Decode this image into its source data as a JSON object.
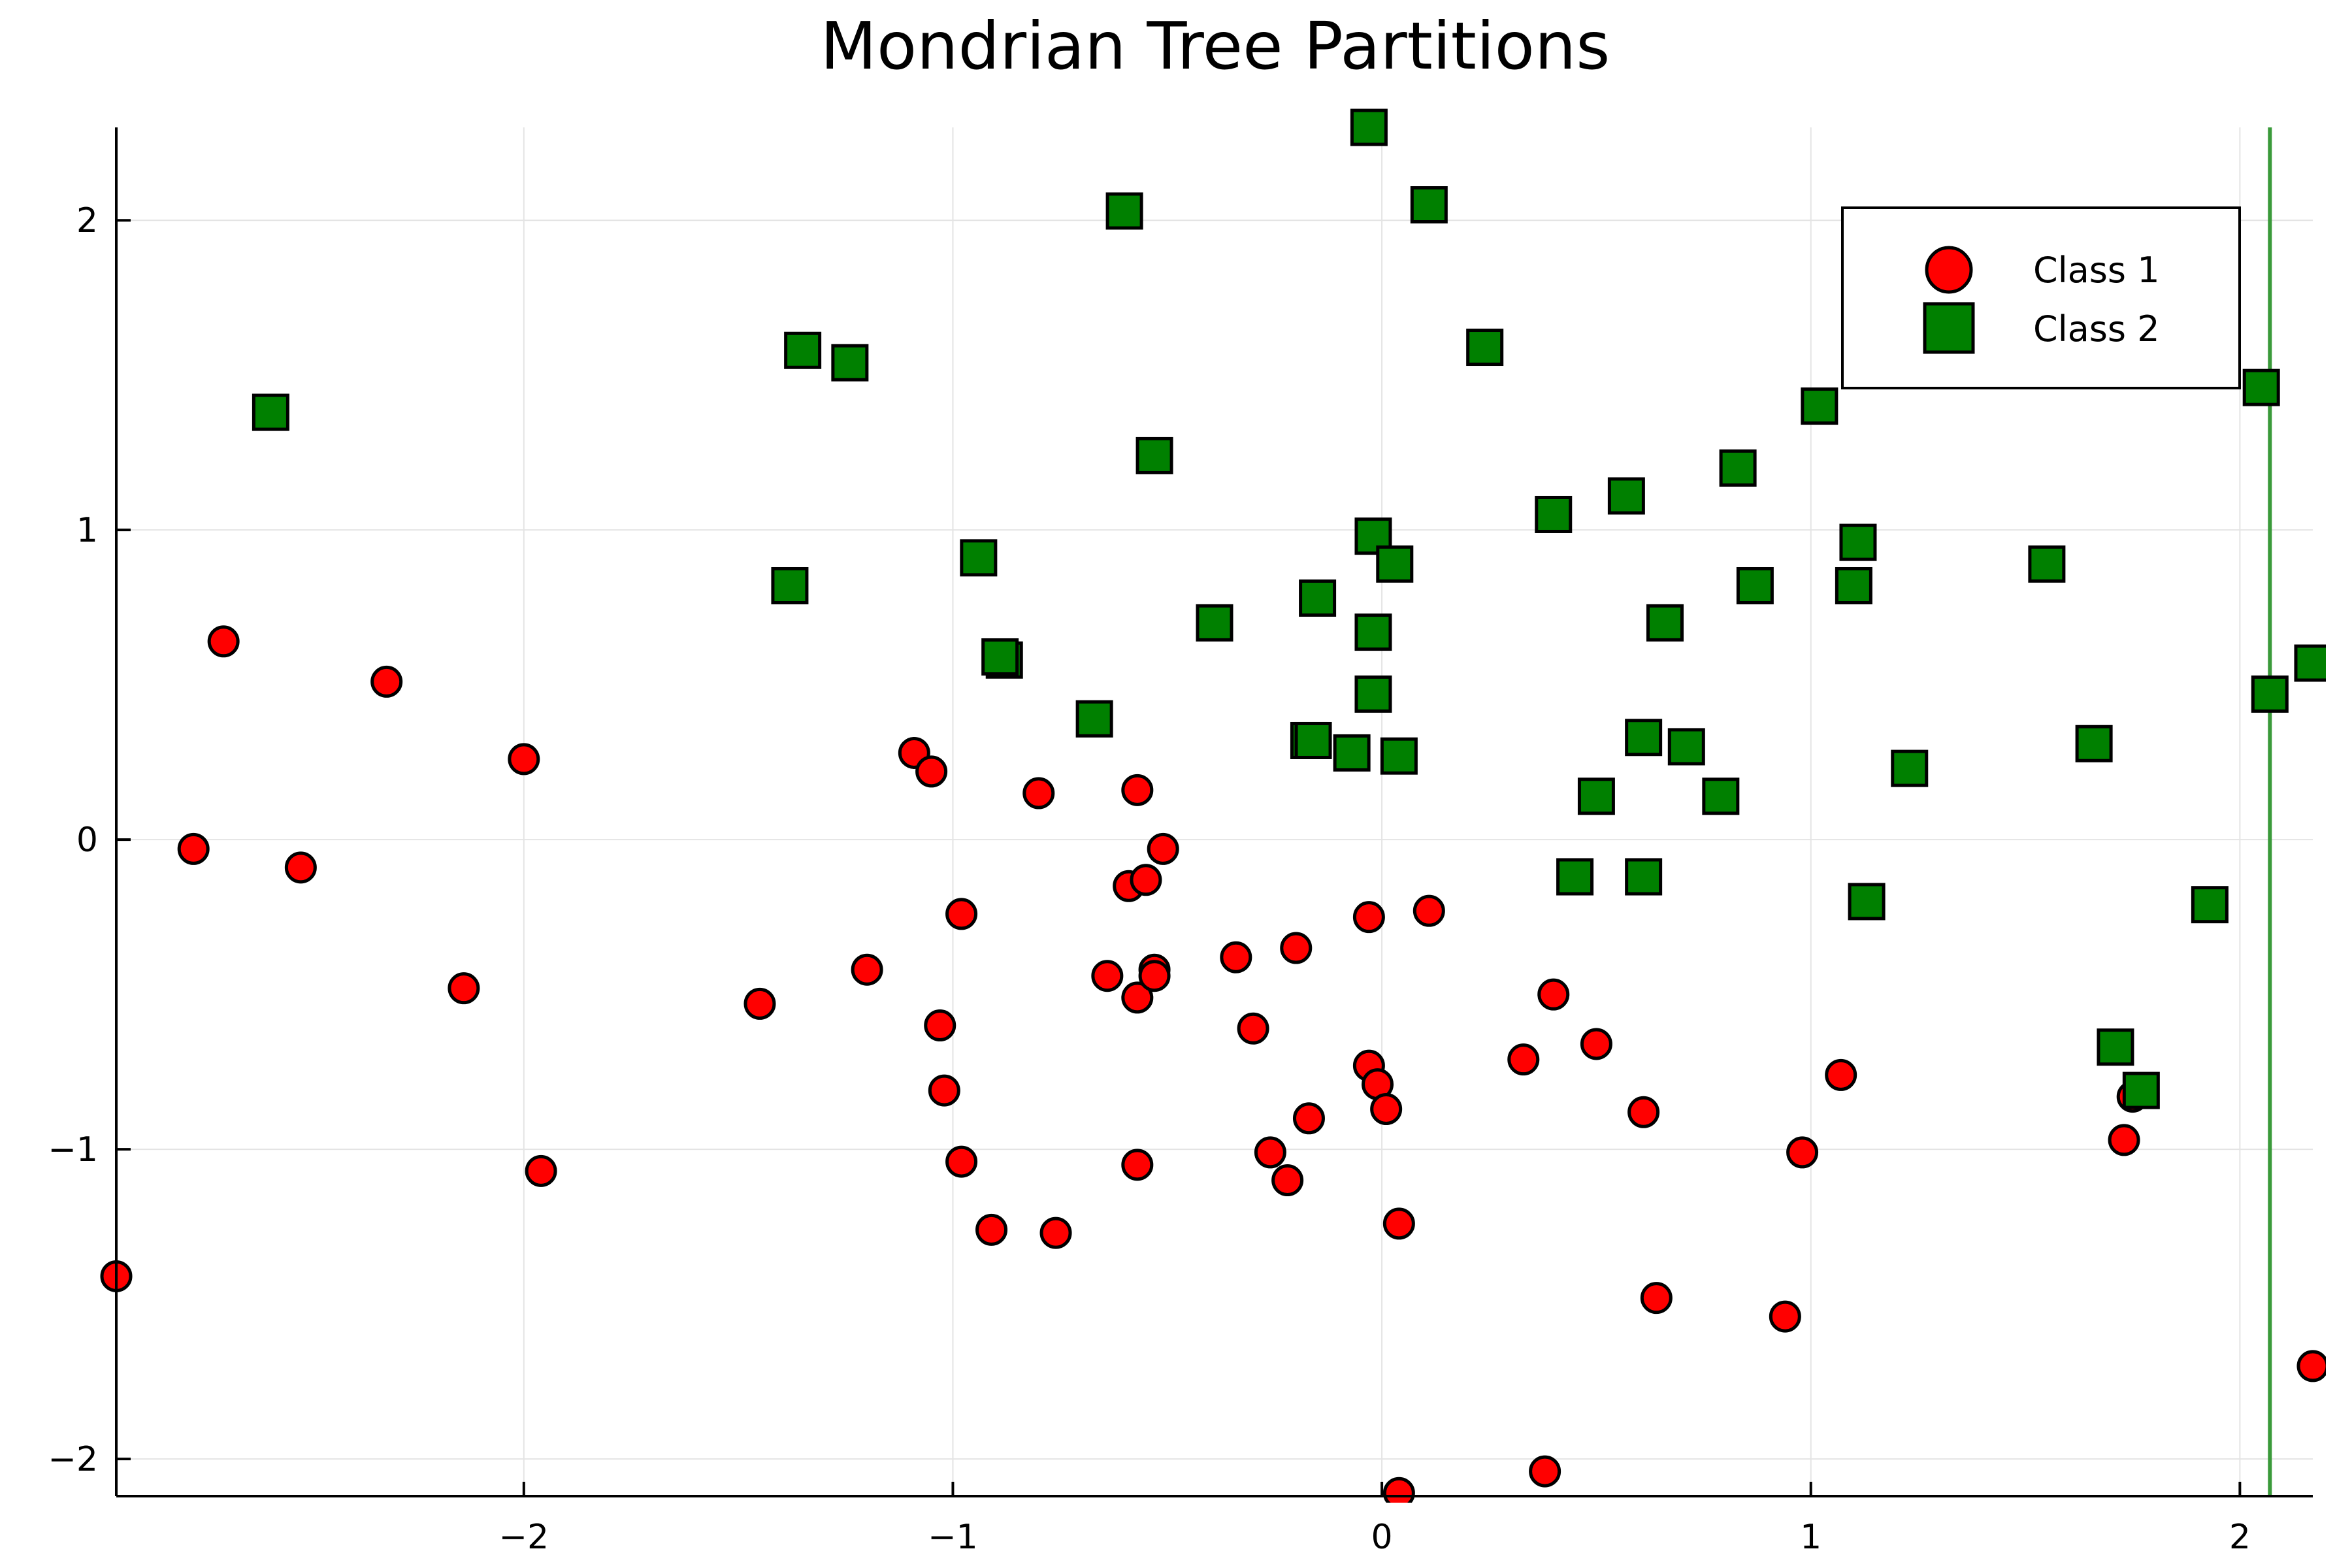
{
  "chart_data": {
    "type": "scatter",
    "title": "Mondrian Tree Partitions",
    "xlabel": "",
    "ylabel": "",
    "xlim": [
      -2.95,
      2.17
    ],
    "ylim": [
      -2.12,
      2.3
    ],
    "xticks": [
      -2,
      -1,
      0,
      1,
      2
    ],
    "yticks": [
      -2,
      -1,
      0,
      1,
      2
    ],
    "xtick_labels": [
      "−2",
      "−1",
      "0",
      "1",
      "2"
    ],
    "ytick_labels": [
      "−2",
      "−1",
      "0",
      "1",
      "2"
    ],
    "grid": true,
    "legend_position": "top-right",
    "partition_lines": [
      {
        "orientation": "vertical",
        "x": 2.07,
        "color": "#3a9a3a"
      }
    ],
    "series": [
      {
        "name": "Class 1",
        "marker": "circle",
        "color": "#ff0000",
        "points": [
          [
            -2.95,
            -1.41
          ],
          [
            -2.77,
            -0.03
          ],
          [
            -2.7,
            0.64
          ],
          [
            -2.52,
            -0.09
          ],
          [
            -2.32,
            0.51
          ],
          [
            -2.14,
            -0.48
          ],
          [
            -2.0,
            0.26
          ],
          [
            -1.96,
            -1.07
          ],
          [
            -1.45,
            -0.53
          ],
          [
            -1.2,
            -0.42
          ],
          [
            -1.09,
            0.28
          ],
          [
            -1.05,
            0.22
          ],
          [
            -1.03,
            -0.6
          ],
          [
            -1.02,
            -0.81
          ],
          [
            -0.98,
            -0.24
          ],
          [
            -0.98,
            -1.04
          ],
          [
            -0.91,
            -1.26
          ],
          [
            -0.8,
            0.15
          ],
          [
            -0.76,
            -1.27
          ],
          [
            -0.64,
            -0.44
          ],
          [
            -0.59,
            -0.15
          ],
          [
            -0.57,
            0.16
          ],
          [
            -0.57,
            -0.51
          ],
          [
            -0.57,
            -1.05
          ],
          [
            -0.55,
            -0.13
          ],
          [
            -0.53,
            -0.42
          ],
          [
            -0.53,
            -0.44
          ],
          [
            -0.51,
            -0.03
          ],
          [
            -0.34,
            -0.38
          ],
          [
            -0.3,
            -0.61
          ],
          [
            -0.26,
            -1.01
          ],
          [
            -0.22,
            -1.1
          ],
          [
            -0.2,
            -0.35
          ],
          [
            -0.17,
            -0.9
          ],
          [
            -0.03,
            -0.25
          ],
          [
            -0.03,
            -0.73
          ],
          [
            -0.01,
            -0.79
          ],
          [
            0.01,
            -0.87
          ],
          [
            0.04,
            -1.24
          ],
          [
            0.04,
            -2.11
          ],
          [
            0.11,
            -0.23
          ],
          [
            0.33,
            -0.71
          ],
          [
            0.38,
            -2.04
          ],
          [
            0.4,
            -0.5
          ],
          [
            0.5,
            -0.66
          ],
          [
            0.61,
            -0.88
          ],
          [
            0.64,
            -1.48
          ],
          [
            0.94,
            -1.54
          ],
          [
            0.98,
            -1.01
          ],
          [
            1.07,
            -0.76
          ],
          [
            1.73,
            -0.97
          ],
          [
            1.75,
            -0.83
          ],
          [
            2.17,
            -1.7
          ]
        ]
      },
      {
        "name": "Class 2",
        "marker": "square",
        "color": "#008000",
        "points": [
          [
            -2.59,
            1.38
          ],
          [
            -1.38,
            0.82
          ],
          [
            -1.35,
            1.58
          ],
          [
            -1.24,
            1.54
          ],
          [
            -0.94,
            0.91
          ],
          [
            -0.88,
            0.58
          ],
          [
            -0.89,
            0.59
          ],
          [
            -0.67,
            0.39
          ],
          [
            -0.6,
            2.03
          ],
          [
            -0.53,
            1.24
          ],
          [
            -0.39,
            0.7
          ],
          [
            -0.17,
            0.32
          ],
          [
            -0.16,
            0.32
          ],
          [
            -0.15,
            0.78
          ],
          [
            -0.07,
            0.28
          ],
          [
            -0.03,
            2.3
          ],
          [
            -0.02,
            0.98
          ],
          [
            -0.02,
            0.67
          ],
          [
            -0.02,
            0.47
          ],
          [
            0.03,
            0.89
          ],
          [
            0.04,
            0.27
          ],
          [
            0.11,
            2.05
          ],
          [
            0.24,
            1.59
          ],
          [
            0.4,
            1.05
          ],
          [
            0.45,
            -0.12
          ],
          [
            0.5,
            0.14
          ],
          [
            0.57,
            1.11
          ],
          [
            0.61,
            0.33
          ],
          [
            0.61,
            -0.12
          ],
          [
            0.66,
            0.7
          ],
          [
            0.71,
            0.3
          ],
          [
            0.79,
            0.14
          ],
          [
            0.83,
            1.2
          ],
          [
            0.87,
            0.82
          ],
          [
            1.02,
            1.4
          ],
          [
            1.1,
            0.82
          ],
          [
            1.11,
            0.96
          ],
          [
            1.13,
            -0.2
          ],
          [
            1.23,
            0.23
          ],
          [
            1.55,
            0.89
          ],
          [
            1.66,
            0.31
          ],
          [
            1.71,
            -0.67
          ],
          [
            1.77,
            -0.81
          ],
          [
            1.93,
            -0.21
          ],
          [
            2.05,
            1.46
          ],
          [
            2.07,
            0.47
          ],
          [
            2.17,
            0.57
          ]
        ]
      }
    ]
  }
}
